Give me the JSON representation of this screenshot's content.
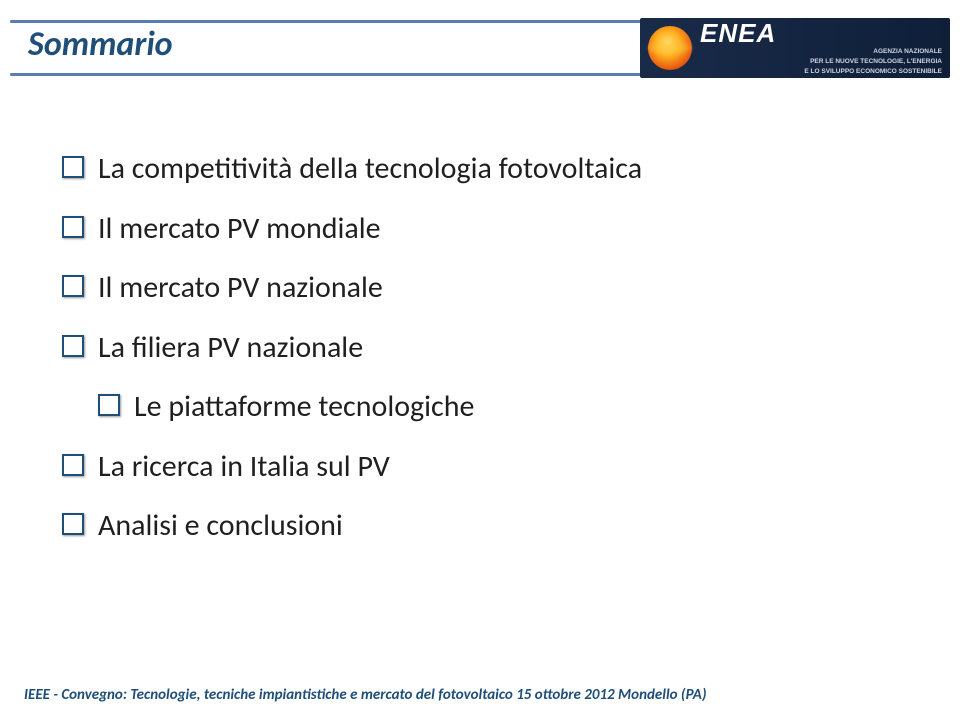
{
  "slide": {
    "title": "Sommario",
    "title_color": "#1f4e79",
    "bar_color": "#5a7db0",
    "background": "#ffffff"
  },
  "logo": {
    "name": "ENEA",
    "tag1": "AGENZIA NAZIONALE",
    "tag2": "PER LE NUOVE TECNOLOGIE, L'ENERGIA",
    "tag3": "E LO SVILUPPO ECONOMICO SOSTENIBILE"
  },
  "items": [
    {
      "text": "La competitività della tecnologia fotovoltaica",
      "indent": 0
    },
    {
      "text": "Il mercato PV mondiale",
      "indent": 0
    },
    {
      "text": "Il mercato PV nazionale",
      "indent": 0
    },
    {
      "text": "La filiera PV nazionale",
      "indent": 0
    },
    {
      "text": "Le piattaforme tecnologiche",
      "indent": 1
    },
    {
      "text": "La ricerca in Italia sul PV",
      "indent": 0
    },
    {
      "text": "Analisi e conclusioni",
      "indent": 0
    }
  ],
  "footer": {
    "text": "IEEE - Convegno: Tecnologie, tecniche impiantistiche e mercato del fotovoltaico 15 ottobre 2012  Mondello (PA)",
    "color": "#1f4e79"
  }
}
